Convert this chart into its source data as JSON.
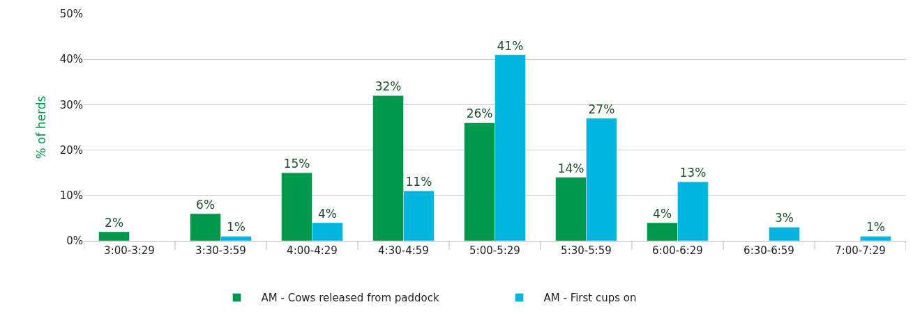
{
  "chart_data": {
    "type": "bar",
    "ylabel": "% of herds",
    "categories": [
      "3:00-3:29",
      "3:30-3:59",
      "4:00-4:29",
      "4:30-4:59",
      "5:00-5:29",
      "5:30-5:59",
      "6:00-6:29",
      "6:30-6:59",
      "7:00-7:29"
    ],
    "series": [
      {
        "name": "AM - Cows released from paddock",
        "color": "#00994c",
        "values": [
          2,
          6,
          15,
          32,
          26,
          14,
          4,
          null,
          null
        ],
        "value_labels": [
          "2%",
          "6%",
          "15%",
          "32%",
          "26%",
          "14%",
          "4%",
          null,
          null
        ]
      },
      {
        "name": "AM - First cups on",
        "color": "#00b6de",
        "values": [
          null,
          1,
          4,
          11,
          41,
          27,
          13,
          3,
          1
        ],
        "value_labels": [
          null,
          "1%",
          "4%",
          "11%",
          "41%",
          "27%",
          "13%",
          "3%",
          "1%"
        ]
      }
    ],
    "ylim": [
      0,
      50
    ],
    "yticks": [
      {
        "value": 0,
        "label": "0%"
      },
      {
        "value": 10,
        "label": "10%"
      },
      {
        "value": 20,
        "label": "20%"
      },
      {
        "value": 30,
        "label": "30%"
      },
      {
        "value": 40,
        "label": "40%"
      },
      {
        "value": 50,
        "label": "50%"
      }
    ],
    "grid": "y",
    "legend": "bottom"
  }
}
